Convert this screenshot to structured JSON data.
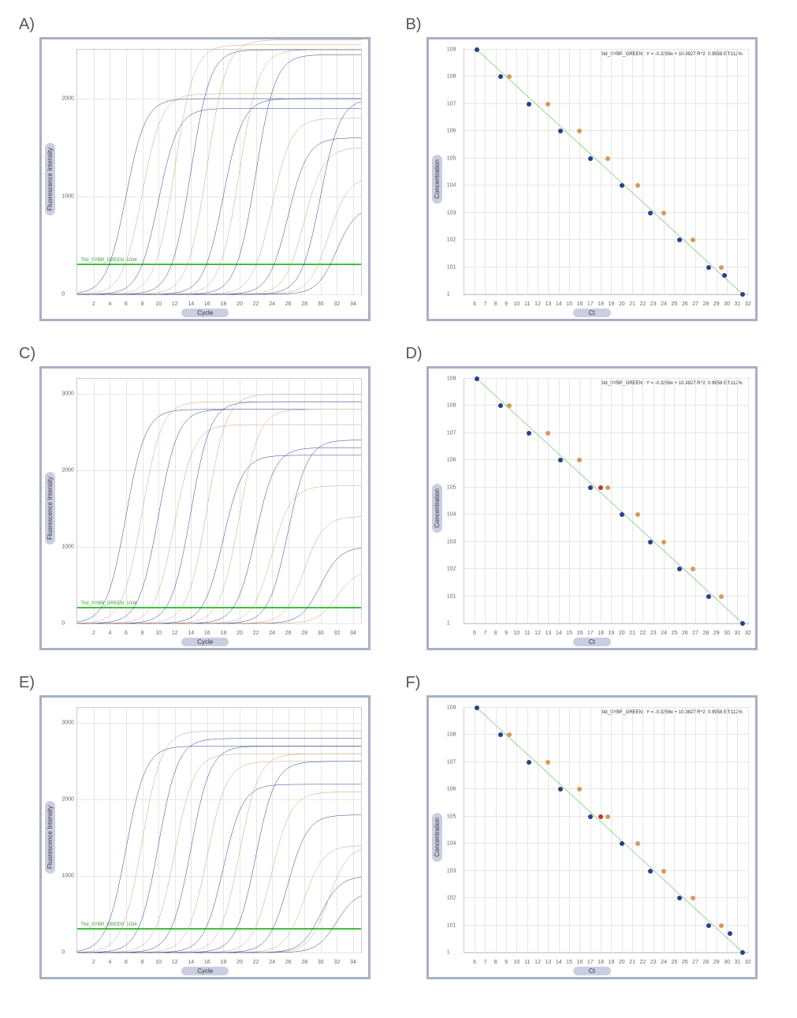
{
  "panels": [
    "A)",
    "B)",
    "C)",
    "D)",
    "E)",
    "F)"
  ],
  "amp_chart_common": {
    "xlabel": "Cycle",
    "ylabel": "Fluorescence Intensity",
    "x_min": 0,
    "x_max": 35,
    "x_ticks": [
      2,
      4,
      6,
      8,
      10,
      12,
      14,
      16,
      18,
      20,
      22,
      24,
      26,
      28,
      30,
      32,
      34
    ],
    "grid_color": "#e6e6e6",
    "frame_color": "#a8b0c4",
    "threshold_color": "#3fbf3f",
    "threshold_text_color": "#3a9a3a",
    "threshold_label": "Thd_SYBR_GREEN: 1034",
    "colors": {
      "blue": "#2b3e8f",
      "brown": "#c9a07a"
    }
  },
  "amp_charts": [
    {
      "ref": "A",
      "y_max": 2500,
      "y_ticks": [
        0,
        1000,
        2000
      ],
      "threshold_y": 300,
      "curves": [
        {
          "ct": 6,
          "plateau": 2000,
          "color": "blue"
        },
        {
          "ct": 8,
          "plateau": 2050,
          "color": "brown"
        },
        {
          "ct": 10,
          "plateau": 1900,
          "color": "blue"
        },
        {
          "ct": 12,
          "plateau": 2550,
          "color": "brown"
        },
        {
          "ct": 14,
          "plateau": 2500,
          "color": "blue"
        },
        {
          "ct": 16,
          "plateau": 2600,
          "color": "brown"
        },
        {
          "ct": 18,
          "plateau": 2000,
          "color": "blue"
        },
        {
          "ct": 20,
          "plateau": 2500,
          "color": "brown"
        },
        {
          "ct": 22,
          "plateau": 2450,
          "color": "blue"
        },
        {
          "ct": 24,
          "plateau": 1800,
          "color": "brown"
        },
        {
          "ct": 26,
          "plateau": 1600,
          "color": "blue"
        },
        {
          "ct": 28,
          "plateau": 1500,
          "color": "brown"
        },
        {
          "ct": 30,
          "plateau": 2000,
          "color": "blue"
        },
        {
          "ct": 31,
          "plateau": 1200,
          "color": "brown"
        },
        {
          "ct": 32,
          "plateau": 900,
          "color": "blue"
        }
      ]
    },
    {
      "ref": "C",
      "y_max": 3200,
      "y_ticks": [
        0,
        1000,
        2000,
        3000
      ],
      "threshold_y": 200,
      "curves": [
        {
          "ct": 6,
          "plateau": 2800,
          "color": "blue"
        },
        {
          "ct": 8,
          "plateau": 2900,
          "color": "brown"
        },
        {
          "ct": 10,
          "plateau": 2800,
          "color": "blue"
        },
        {
          "ct": 12,
          "plateau": 2600,
          "color": "brown"
        },
        {
          "ct": 14,
          "plateau": 2900,
          "color": "blue"
        },
        {
          "ct": 16,
          "plateau": 3000,
          "color": "brown"
        },
        {
          "ct": 18,
          "plateau": 2200,
          "color": "blue"
        },
        {
          "ct": 20,
          "plateau": 2800,
          "color": "brown"
        },
        {
          "ct": 22,
          "plateau": 2300,
          "color": "blue"
        },
        {
          "ct": 24,
          "plateau": 1800,
          "color": "brown"
        },
        {
          "ct": 26,
          "plateau": 2400,
          "color": "blue"
        },
        {
          "ct": 28,
          "plateau": 1400,
          "color": "brown"
        },
        {
          "ct": 30,
          "plateau": 1000,
          "color": "blue"
        },
        {
          "ct": 32,
          "plateau": 700,
          "color": "brown"
        }
      ]
    },
    {
      "ref": "E",
      "y_max": 3200,
      "y_ticks": [
        0,
        1000,
        2000,
        3000
      ],
      "threshold_y": 300,
      "curves": [
        {
          "ct": 6,
          "plateau": 2700,
          "color": "blue"
        },
        {
          "ct": 8,
          "plateau": 2900,
          "color": "brown"
        },
        {
          "ct": 10,
          "plateau": 2800,
          "color": "blue"
        },
        {
          "ct": 12,
          "plateau": 2600,
          "color": "brown"
        },
        {
          "ct": 14,
          "plateau": 2700,
          "color": "blue"
        },
        {
          "ct": 16,
          "plateau": 2500,
          "color": "brown"
        },
        {
          "ct": 18,
          "plateau": 2200,
          "color": "blue"
        },
        {
          "ct": 20,
          "plateau": 2600,
          "color": "brown"
        },
        {
          "ct": 22,
          "plateau": 2500,
          "color": "blue"
        },
        {
          "ct": 24,
          "plateau": 2100,
          "color": "brown"
        },
        {
          "ct": 26,
          "plateau": 1800,
          "color": "blue"
        },
        {
          "ct": 28,
          "plateau": 1400,
          "color": "brown"
        },
        {
          "ct": 30,
          "plateau": 1000,
          "color": "blue"
        },
        {
          "ct": 31,
          "plateau": 1400,
          "color": "brown"
        },
        {
          "ct": 32,
          "plateau": 800,
          "color": "blue"
        }
      ]
    }
  ],
  "std_chart_common": {
    "xlabel": "Ct",
    "ylabel": "Concentration",
    "x_min": 5,
    "x_max": 32,
    "x_ticks": [
      6,
      7,
      8,
      9,
      10,
      11,
      12,
      13,
      14,
      15,
      16,
      17,
      18,
      19,
      20,
      21,
      22,
      23,
      24,
      25,
      26,
      27,
      28,
      29,
      30,
      31,
      32
    ],
    "logy_min": 0,
    "logy_max": 9,
    "y_tick_labels": [
      "1",
      "10^1",
      "10^2",
      "10^3",
      "10^4",
      "10^5",
      "10^6",
      "10^7",
      "10^8",
      "10^9"
    ],
    "grid_color": "#e6e6e6",
    "frame_color": "#a8b0c4",
    "fit_color": "#5bbf5b",
    "equation_text": "Std_SYBR_GREEN : Y = -0.3256x + 10.9827    R^2: 0.9958 Eff:112%",
    "colors": {
      "blue": "#2b3e8f",
      "orange": "#d49b5a",
      "red": "#c0392b"
    }
  },
  "std_charts": [
    {
      "ref": "B",
      "points": [
        {
          "ct": 6.2,
          "logc": 9,
          "c": "blue"
        },
        {
          "ct": 8.5,
          "logc": 8,
          "c": "blue"
        },
        {
          "ct": 9.3,
          "logc": 8,
          "c": "orange"
        },
        {
          "ct": 11.2,
          "logc": 7,
          "c": "blue"
        },
        {
          "ct": 13.0,
          "logc": 7,
          "c": "orange"
        },
        {
          "ct": 14.2,
          "logc": 6,
          "c": "blue"
        },
        {
          "ct": 16.0,
          "logc": 6,
          "c": "orange"
        },
        {
          "ct": 17.0,
          "logc": 5,
          "c": "blue"
        },
        {
          "ct": 18.7,
          "logc": 5,
          "c": "orange"
        },
        {
          "ct": 20.0,
          "logc": 4,
          "c": "blue"
        },
        {
          "ct": 21.5,
          "logc": 4,
          "c": "orange"
        },
        {
          "ct": 22.7,
          "logc": 3,
          "c": "blue"
        },
        {
          "ct": 24.0,
          "logc": 3,
          "c": "orange"
        },
        {
          "ct": 25.5,
          "logc": 2,
          "c": "blue"
        },
        {
          "ct": 26.8,
          "logc": 2,
          "c": "orange"
        },
        {
          "ct": 28.3,
          "logc": 1,
          "c": "blue"
        },
        {
          "ct": 29.5,
          "logc": 1,
          "c": "orange"
        },
        {
          "ct": 29.8,
          "logc": 0.7,
          "c": "blue"
        },
        {
          "ct": 31.5,
          "logc": 0,
          "c": "blue"
        }
      ]
    },
    {
      "ref": "D",
      "points": [
        {
          "ct": 6.2,
          "logc": 9,
          "c": "blue"
        },
        {
          "ct": 8.5,
          "logc": 8,
          "c": "blue"
        },
        {
          "ct": 9.3,
          "logc": 8,
          "c": "orange"
        },
        {
          "ct": 11.2,
          "logc": 7,
          "c": "blue"
        },
        {
          "ct": 13.0,
          "logc": 7,
          "c": "orange"
        },
        {
          "ct": 14.2,
          "logc": 6,
          "c": "blue"
        },
        {
          "ct": 16.0,
          "logc": 6,
          "c": "orange"
        },
        {
          "ct": 17.0,
          "logc": 5,
          "c": "blue"
        },
        {
          "ct": 18.0,
          "logc": 5,
          "c": "red"
        },
        {
          "ct": 18.7,
          "logc": 5,
          "c": "orange"
        },
        {
          "ct": 20.0,
          "logc": 4,
          "c": "blue"
        },
        {
          "ct": 21.5,
          "logc": 4,
          "c": "orange"
        },
        {
          "ct": 22.7,
          "logc": 3,
          "c": "blue"
        },
        {
          "ct": 24.0,
          "logc": 3,
          "c": "orange"
        },
        {
          "ct": 25.5,
          "logc": 2,
          "c": "blue"
        },
        {
          "ct": 26.8,
          "logc": 2,
          "c": "orange"
        },
        {
          "ct": 28.3,
          "logc": 1,
          "c": "blue"
        },
        {
          "ct": 29.5,
          "logc": 1,
          "c": "orange"
        },
        {
          "ct": 31.5,
          "logc": 0,
          "c": "blue"
        }
      ]
    },
    {
      "ref": "F",
      "points": [
        {
          "ct": 6.2,
          "logc": 9,
          "c": "blue"
        },
        {
          "ct": 8.5,
          "logc": 8,
          "c": "blue"
        },
        {
          "ct": 9.3,
          "logc": 8,
          "c": "orange"
        },
        {
          "ct": 11.2,
          "logc": 7,
          "c": "blue"
        },
        {
          "ct": 13.0,
          "logc": 7,
          "c": "orange"
        },
        {
          "ct": 14.2,
          "logc": 6,
          "c": "blue"
        },
        {
          "ct": 16.0,
          "logc": 6,
          "c": "orange"
        },
        {
          "ct": 17.0,
          "logc": 5,
          "c": "blue"
        },
        {
          "ct": 18.0,
          "logc": 5,
          "c": "red"
        },
        {
          "ct": 18.7,
          "logc": 5,
          "c": "orange"
        },
        {
          "ct": 20.0,
          "logc": 4,
          "c": "blue"
        },
        {
          "ct": 21.5,
          "logc": 4,
          "c": "orange"
        },
        {
          "ct": 22.7,
          "logc": 3,
          "c": "blue"
        },
        {
          "ct": 24.0,
          "logc": 3,
          "c": "orange"
        },
        {
          "ct": 25.5,
          "logc": 2,
          "c": "blue"
        },
        {
          "ct": 26.8,
          "logc": 2,
          "c": "orange"
        },
        {
          "ct": 28.3,
          "logc": 1,
          "c": "blue"
        },
        {
          "ct": 29.5,
          "logc": 1,
          "c": "orange"
        },
        {
          "ct": 30.3,
          "logc": 0.7,
          "c": "blue"
        },
        {
          "ct": 31.5,
          "logc": 0,
          "c": "blue"
        }
      ]
    }
  ]
}
